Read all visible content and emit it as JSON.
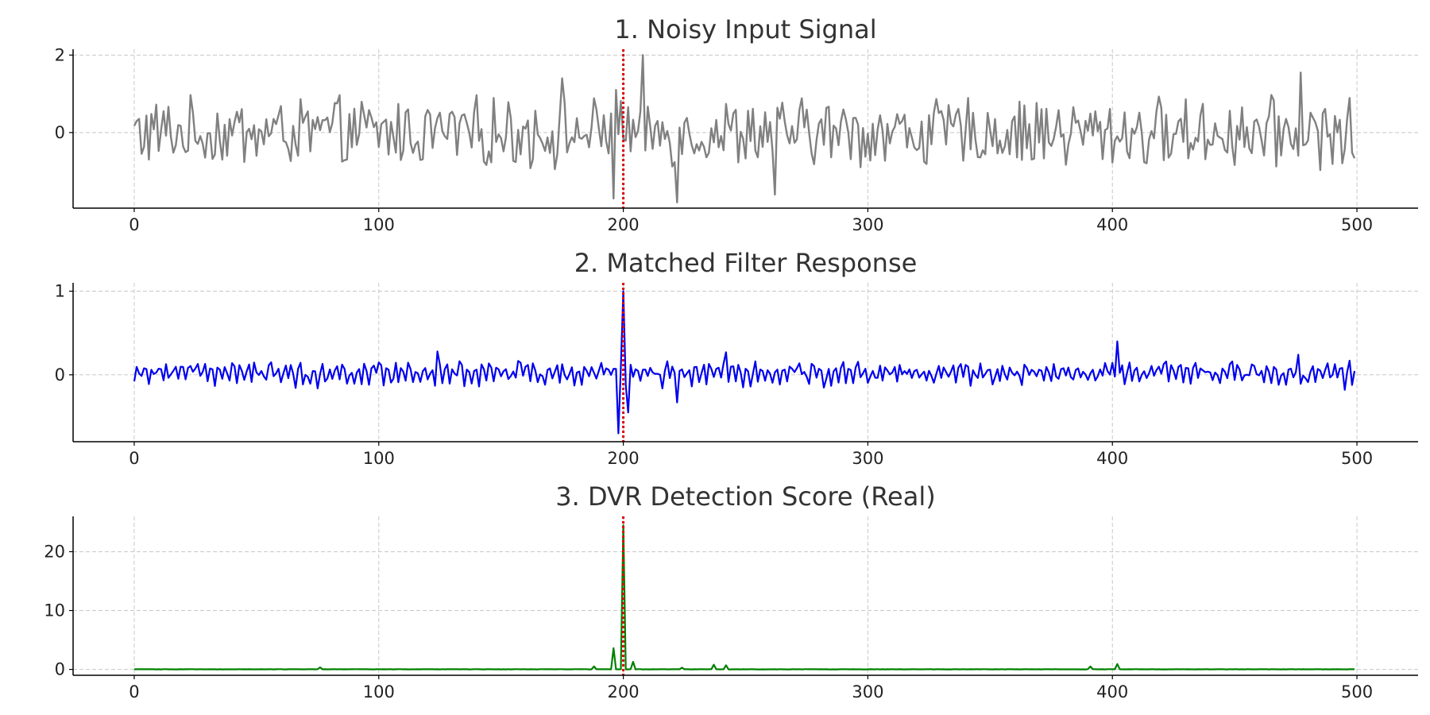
{
  "chart_data": [
    {
      "type": "line",
      "title": "1. Noisy Input Signal",
      "xlabel": "",
      "ylabel": "",
      "xlim": [
        -25,
        525
      ],
      "ylim": [
        -1.95,
        2.15
      ],
      "xticks": [
        0,
        100,
        200,
        300,
        400,
        500
      ],
      "yticks": [
        0,
        2
      ],
      "grid": true,
      "color": "#808080",
      "marker_line": {
        "x": 200,
        "color": "#dd0000",
        "style": "dotted"
      },
      "series": [
        {
          "x_start": 0,
          "x_step": 1,
          "generator": "noise",
          "amplitude": 0.5,
          "spikes": [
            [
              196,
              -1.7
            ],
            [
              208,
              2.0
            ],
            [
              222,
              -1.8
            ],
            [
              262,
              -1.6
            ],
            [
              477,
              1.55
            ],
            [
              175,
              1.4
            ],
            [
              197,
              1.1
            ]
          ]
        }
      ]
    },
    {
      "type": "line",
      "title": "2. Matched Filter Response",
      "xlabel": "",
      "ylabel": "",
      "xlim": [
        -25,
        525
      ],
      "ylim": [
        -0.8,
        1.1
      ],
      "xticks": [
        0,
        100,
        200,
        300,
        400,
        500
      ],
      "yticks": [
        0,
        1
      ],
      "grid": true,
      "color": "#0000ee",
      "marker_line": {
        "x": 200,
        "color": "#dd0000",
        "style": "dotted"
      },
      "series": [
        {
          "x_start": 0,
          "x_step": 1,
          "generator": "oscillation",
          "amplitude": 0.1,
          "spikes": [
            [
              200,
              1.0
            ],
            [
              198,
              -0.7
            ],
            [
              202,
              -0.45
            ],
            [
              402,
              0.4
            ],
            [
              124,
              0.28
            ],
            [
              242,
              0.27
            ],
            [
              222,
              -0.33
            ],
            [
              476,
              0.24
            ]
          ]
        }
      ]
    },
    {
      "type": "line",
      "title": "3. DVR Detection Score (Real)",
      "xlabel": "",
      "ylabel": "",
      "xlim": [
        -25,
        525
      ],
      "ylim": [
        -1,
        26
      ],
      "xticks": [
        0,
        100,
        200,
        300,
        400,
        500
      ],
      "yticks": [
        0,
        10,
        20
      ],
      "grid": true,
      "color": "#008000",
      "marker_line": {
        "x": 200,
        "color": "#dd0000",
        "style": "dotted"
      },
      "series": [
        {
          "x_start": 0,
          "x_step": 1,
          "generator": "baseline",
          "amplitude": 0.1,
          "spikes": [
            [
              200,
              24.5
            ],
            [
              196,
              3.6
            ],
            [
              204,
              1.3
            ],
            [
              402,
              0.9
            ],
            [
              237,
              0.8
            ],
            [
              242,
              0.7
            ],
            [
              188,
              0.5
            ],
            [
              391,
              0.5
            ],
            [
              76,
              0.35
            ],
            [
              224,
              0.3
            ]
          ]
        }
      ]
    }
  ]
}
